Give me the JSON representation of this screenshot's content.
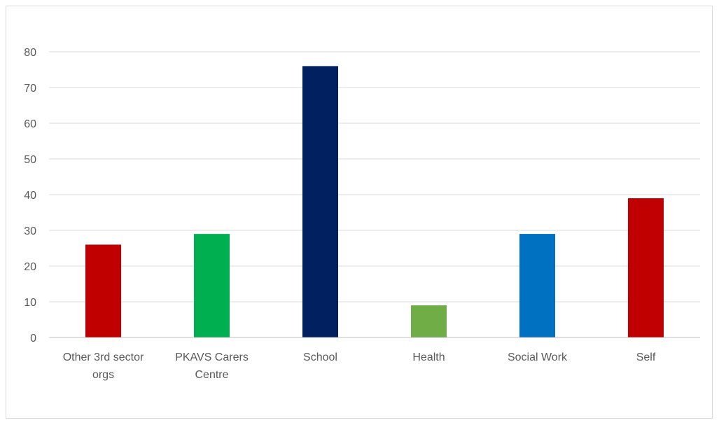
{
  "chart_data": {
    "type": "bar",
    "title": "",
    "xlabel": "",
    "ylabel": "",
    "categories": [
      [
        "Other 3rd sector",
        "orgs"
      ],
      [
        "PKAVS Carers",
        "Centre"
      ],
      [
        "School"
      ],
      [
        "Health"
      ],
      [
        "Social Work"
      ],
      [
        "Self"
      ]
    ],
    "values": [
      26,
      29,
      76,
      9,
      29,
      39
    ],
    "bar_colors": [
      "#c00000",
      "#00b050",
      "#002060",
      "#70ad47",
      "#0070c0",
      "#c00000"
    ],
    "ylim": [
      0,
      80
    ],
    "yticks": [
      0,
      10,
      20,
      30,
      40,
      50,
      60,
      70,
      80
    ],
    "grid": true,
    "legend": "none"
  }
}
